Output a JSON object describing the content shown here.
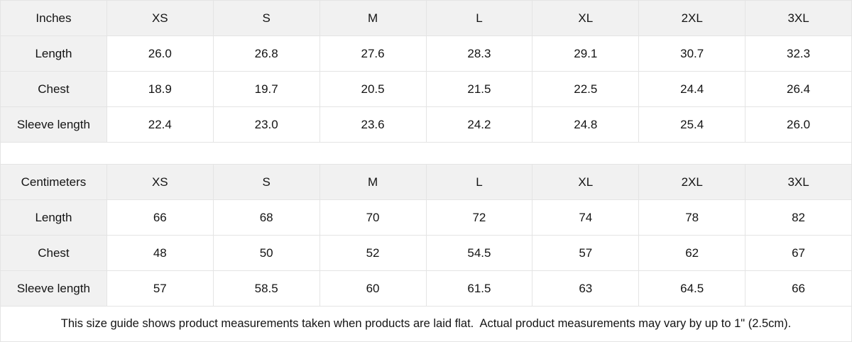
{
  "tables": [
    {
      "unit_label": "Inches",
      "sizes": [
        "XS",
        "S",
        "M",
        "L",
        "XL",
        "2XL",
        "3XL"
      ],
      "rows": [
        {
          "label": "Length",
          "values": [
            "26.0",
            "26.8",
            "27.6",
            "28.3",
            "29.1",
            "30.7",
            "32.3"
          ]
        },
        {
          "label": "Chest",
          "values": [
            "18.9",
            "19.7",
            "20.5",
            "21.5",
            "22.5",
            "24.4",
            "26.4"
          ]
        },
        {
          "label": "Sleeve length",
          "values": [
            "22.4",
            "23.0",
            "23.6",
            "24.2",
            "24.8",
            "25.4",
            "26.0"
          ]
        }
      ]
    },
    {
      "unit_label": "Centimeters",
      "sizes": [
        "XS",
        "S",
        "M",
        "L",
        "XL",
        "2XL",
        "3XL"
      ],
      "rows": [
        {
          "label": "Length",
          "values": [
            "66",
            "68",
            "70",
            "72",
            "74",
            "78",
            "82"
          ]
        },
        {
          "label": "Chest",
          "values": [
            "48",
            "50",
            "52",
            "54.5",
            "57",
            "62",
            "67"
          ]
        },
        {
          "label": "Sleeve length",
          "values": [
            "57",
            "58.5",
            "60",
            "61.5",
            "63",
            "64.5",
            "66"
          ]
        }
      ]
    }
  ],
  "footer": {
    "note": "This size guide shows product measurements taken when products are laid flat.  Actual product measurements may vary by up to 1\" (2.5cm)."
  },
  "colors": {
    "header_bg": "#f1f1f1",
    "border": "#e4e4e4",
    "text": "#141414",
    "background": "#ffffff"
  }
}
